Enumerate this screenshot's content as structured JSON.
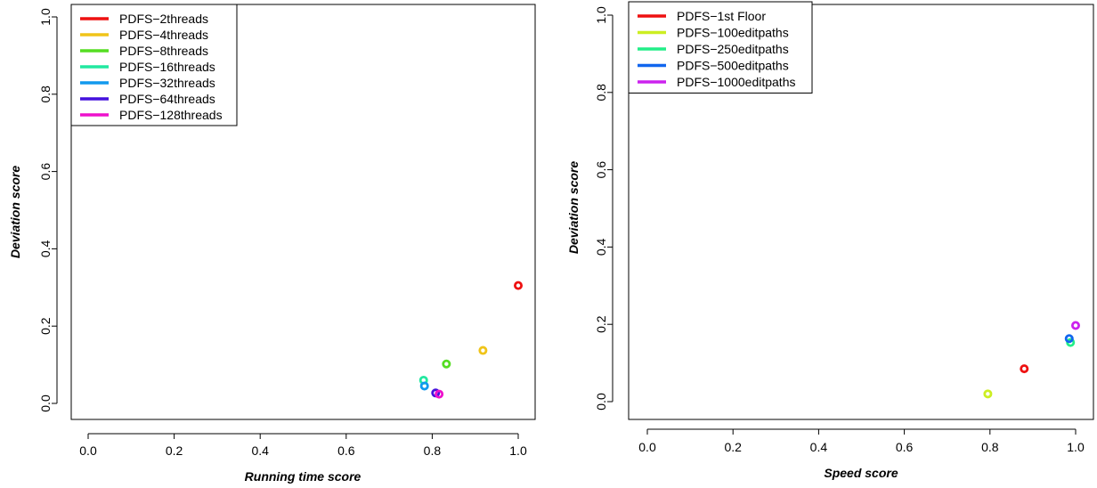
{
  "chart_data": [
    {
      "type": "scatter",
      "xlabel": "Running time score",
      "ylabel": "Deviation score",
      "xlim": [
        0.0,
        1.0
      ],
      "ylim": [
        0.0,
        1.0
      ],
      "xticks": [
        "0.0",
        "0.2",
        "0.4",
        "0.6",
        "0.8",
        "1.0"
      ],
      "yticks": [
        "0.0",
        "0.2",
        "0.4",
        "0.6",
        "0.8",
        "1.0"
      ],
      "grid": false,
      "legend_position": "top-left",
      "series": [
        {
          "name": "PDFS−2threads",
          "color": "#ee1111",
          "x": [
            1.0
          ],
          "y": [
            0.305
          ]
        },
        {
          "name": "PDFS−4threads",
          "color": "#f0c419",
          "x": [
            0.918
          ],
          "y": [
            0.137
          ]
        },
        {
          "name": "PDFS−8threads",
          "color": "#55dd22",
          "x": [
            0.833
          ],
          "y": [
            0.102
          ]
        },
        {
          "name": "PDFS−16threads",
          "color": "#22e8a0",
          "x": [
            0.78
          ],
          "y": [
            0.06
          ]
        },
        {
          "name": "PDFS−32threads",
          "color": "#1199ee",
          "x": [
            0.782
          ],
          "y": [
            0.045
          ]
        },
        {
          "name": "PDFS−64threads",
          "color": "#4411dd",
          "x": [
            0.808
          ],
          "y": [
            0.027
          ]
        },
        {
          "name": "PDFS−128threads",
          "color": "#ee11cc",
          "x": [
            0.816
          ],
          "y": [
            0.024
          ]
        }
      ]
    },
    {
      "type": "scatter",
      "xlabel": "Speed score",
      "ylabel": "Deviation score",
      "xlim": [
        0.0,
        1.0
      ],
      "ylim": [
        0.0,
        1.0
      ],
      "xticks": [
        "0.0",
        "0.2",
        "0.4",
        "0.6",
        "0.8",
        "1.0"
      ],
      "yticks": [
        "0.0",
        "0.2",
        "0.4",
        "0.6",
        "0.8",
        "1.0"
      ],
      "grid": false,
      "legend_position": "top-left",
      "series": [
        {
          "name": "PDFS−1st Floor",
          "color": "#ee1111",
          "x": [
            0.88
          ],
          "y": [
            0.085
          ]
        },
        {
          "name": "PDFS−100editpaths",
          "color": "#ccee22",
          "x": [
            0.795
          ],
          "y": [
            0.02
          ]
        },
        {
          "name": "PDFS−250editpaths",
          "color": "#22ee88",
          "x": [
            0.988
          ],
          "y": [
            0.153
          ]
        },
        {
          "name": "PDFS−500editpaths",
          "color": "#1166ee",
          "x": [
            0.985
          ],
          "y": [
            0.163
          ]
        },
        {
          "name": "PDFS−1000editpaths",
          "color": "#cc22ee",
          "x": [
            1.0
          ],
          "y": [
            0.197
          ]
        }
      ]
    }
  ]
}
